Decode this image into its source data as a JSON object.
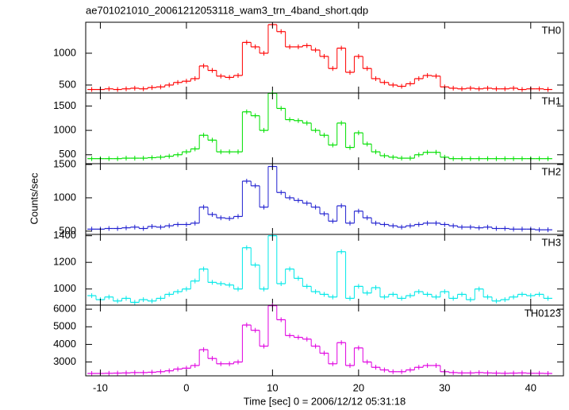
{
  "title": "ae701021010_20061212053118_wam3_trn_4band_short.qdp",
  "ylabel": "Counts/sec",
  "xlabel": "Time [sec] 0 = 2006/12/12 05:31:18",
  "chart_data": [
    {
      "type": "step",
      "x": [
        -11,
        -10,
        -9,
        -8,
        -7,
        -6,
        -5,
        -4,
        -3,
        -2,
        -1,
        0,
        1,
        2,
        3,
        4,
        5,
        6,
        7,
        8,
        9,
        10,
        11,
        12,
        13,
        14,
        15,
        16,
        17,
        18,
        19,
        20,
        21,
        22,
        23,
        24,
        25,
        26,
        27,
        28,
        29,
        30,
        31,
        32,
        33,
        34,
        35,
        36,
        37,
        38,
        39,
        40,
        41,
        42
      ],
      "xlim": [
        -11.7,
        43.8
      ],
      "xticks": [
        -10,
        0,
        10,
        20,
        30,
        40
      ],
      "ylim": [
        375,
        1487
      ],
      "yticks": [
        500,
        1000
      ],
      "series": [
        {
          "name": "TH0",
          "color": "#ff0000",
          "values": [
            430,
            430,
            440,
            430,
            440,
            450,
            440,
            460,
            470,
            500,
            540,
            560,
            600,
            800,
            730,
            640,
            620,
            650,
            1170,
            1100,
            1000,
            1450,
            1340,
            1100,
            1100,
            1120,
            1050,
            950,
            760,
            1080,
            700,
            950,
            760,
            600,
            540,
            500,
            480,
            520,
            600,
            650,
            640,
            470,
            450,
            440,
            450,
            440,
            450,
            440,
            440,
            450,
            430,
            440,
            440,
            430
          ]
        }
      ]
    },
    {
      "type": "step",
      "x": [
        -11,
        -10,
        -9,
        -8,
        -7,
        -6,
        -5,
        -4,
        -3,
        -2,
        -1,
        0,
        1,
        2,
        3,
        4,
        5,
        6,
        7,
        8,
        9,
        10,
        11,
        12,
        13,
        14,
        15,
        16,
        17,
        18,
        19,
        20,
        21,
        22,
        23,
        24,
        25,
        26,
        27,
        28,
        29,
        30,
        31,
        32,
        33,
        34,
        35,
        36,
        37,
        38,
        39,
        40,
        41,
        42
      ],
      "xlim": [
        -11.7,
        43.8
      ],
      "xticks": [
        -10,
        0,
        10,
        20,
        30,
        40
      ],
      "ylim": [
        317,
        1767
      ],
      "yticks": [
        500,
        1000,
        1500
      ],
      "series": [
        {
          "name": "TH1",
          "color": "#00e000",
          "values": [
            420,
            420,
            420,
            420,
            430,
            430,
            430,
            440,
            450,
            470,
            500,
            560,
            620,
            900,
            800,
            560,
            560,
            560,
            1380,
            1300,
            1000,
            1760,
            1450,
            1220,
            1200,
            1150,
            1000,
            900,
            700,
            1150,
            650,
            950,
            720,
            560,
            480,
            450,
            430,
            430,
            500,
            550,
            550,
            450,
            420,
            420,
            420,
            420,
            420,
            420,
            420,
            420,
            420,
            420,
            420,
            420
          ]
        }
      ]
    },
    {
      "type": "step",
      "x": [
        -11,
        -10,
        -9,
        -8,
        -7,
        -6,
        -5,
        -4,
        -3,
        -2,
        -1,
        0,
        1,
        2,
        3,
        4,
        5,
        6,
        7,
        8,
        9,
        10,
        11,
        12,
        13,
        14,
        15,
        16,
        17,
        18,
        19,
        20,
        21,
        22,
        23,
        24,
        25,
        26,
        27,
        28,
        29,
        30,
        31,
        32,
        33,
        34,
        35,
        36,
        37,
        38,
        39,
        40,
        41,
        42
      ],
      "xlim": [
        -11.7,
        43.8
      ],
      "xticks": [
        -10,
        0,
        10,
        20,
        30,
        40
      ],
      "ylim": [
        451,
        1512
      ],
      "yticks": [
        500,
        1000,
        1500
      ],
      "series": [
        {
          "name": "TH2",
          "color": "#2020d0",
          "values": [
            530,
            530,
            540,
            540,
            550,
            560,
            540,
            570,
            560,
            580,
            600,
            600,
            620,
            860,
            750,
            700,
            690,
            720,
            1250,
            1180,
            860,
            1470,
            1080,
            1000,
            960,
            920,
            860,
            760,
            650,
            880,
            620,
            800,
            700,
            620,
            600,
            580,
            560,
            580,
            600,
            620,
            620,
            600,
            580,
            560,
            560,
            550,
            560,
            540,
            540,
            530,
            530,
            530,
            520,
            520
          ]
        }
      ]
    },
    {
      "type": "step",
      "x": [
        -11,
        -10,
        -9,
        -8,
        -7,
        -6,
        -5,
        -4,
        -3,
        -2,
        -1,
        0,
        1,
        2,
        3,
        4,
        5,
        6,
        7,
        8,
        9,
        10,
        11,
        12,
        13,
        14,
        15,
        16,
        17,
        18,
        19,
        20,
        21,
        22,
        23,
        24,
        25,
        26,
        27,
        28,
        29,
        30,
        31,
        32,
        33,
        34,
        35,
        36,
        37,
        38,
        39,
        40,
        41,
        42
      ],
      "xlim": [
        -11.7,
        43.8
      ],
      "xticks": [
        -10,
        0,
        10,
        20,
        30,
        40
      ],
      "ylim": [
        879,
        1410
      ],
      "yticks": [
        1000,
        1200,
        1400
      ],
      "series": [
        {
          "name": "TH3",
          "color": "#00e8e8",
          "values": [
            950,
            920,
            940,
            910,
            930,
            900,
            920,
            910,
            930,
            960,
            980,
            1000,
            1060,
            1150,
            1050,
            1040,
            1030,
            1000,
            1310,
            1180,
            1000,
            1400,
            1040,
            1150,
            1080,
            1020,
            980,
            960,
            940,
            1280,
            930,
            1020,
            970,
            1010,
            940,
            960,
            930,
            950,
            980,
            960,
            940,
            980,
            930,
            960,
            920,
            1000,
            940,
            910,
            920,
            940,
            960,
            950,
            960,
            930
          ]
        }
      ]
    },
    {
      "type": "step",
      "x": [
        -11,
        -10,
        -9,
        -8,
        -7,
        -6,
        -5,
        -4,
        -3,
        -2,
        -1,
        0,
        1,
        2,
        3,
        4,
        5,
        6,
        7,
        8,
        9,
        10,
        11,
        12,
        13,
        14,
        15,
        16,
        17,
        18,
        19,
        20,
        21,
        22,
        23,
        24,
        25,
        26,
        27,
        28,
        29,
        30,
        31,
        32,
        33,
        34,
        35,
        36,
        37,
        38,
        39,
        40,
        41,
        42
      ],
      "xlim": [
        -11.7,
        43.8
      ],
      "xticks": [
        -10,
        0,
        10,
        20,
        30,
        40
      ],
      "ylim": [
        2215,
        6230
      ],
      "yticks": [
        3000,
        4000,
        5000,
        6000
      ],
      "series": [
        {
          "name": "TH0123",
          "color": "#e000e0",
          "values": [
            2350,
            2350,
            2360,
            2370,
            2380,
            2400,
            2400,
            2420,
            2450,
            2500,
            2600,
            2650,
            2800,
            3700,
            3200,
            2900,
            2900,
            3000,
            5100,
            4800,
            3900,
            6200,
            5400,
            4500,
            4400,
            4300,
            3900,
            3500,
            2900,
            4100,
            2800,
            3800,
            3000,
            2700,
            2550,
            2450,
            2450,
            2550,
            2700,
            2800,
            2800,
            2450,
            2400,
            2380,
            2380,
            2400,
            2380,
            2370,
            2360,
            2370,
            2380,
            2360,
            2360,
            2350
          ]
        }
      ]
    }
  ]
}
